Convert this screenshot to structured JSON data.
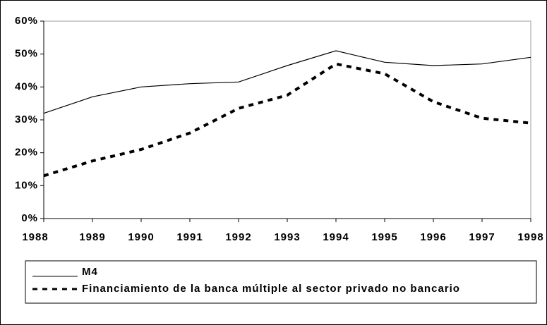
{
  "chart_data": {
    "type": "line",
    "categories": [
      "1988",
      "1989",
      "1990",
      "1991",
      "1992",
      "1993",
      "1994",
      "1995",
      "1996",
      "1997",
      "1998"
    ],
    "series": [
      {
        "name": "M4",
        "color": "#000000",
        "dash": "solid",
        "values": [
          32,
          37,
          40,
          41,
          41.5,
          46.5,
          51,
          47.5,
          46.5,
          47,
          49
        ]
      },
      {
        "name": "Financiamiento de la banca múltiple al sector privado no bancario",
        "color": "#000000",
        "dash": "dashed",
        "values": [
          13,
          17.5,
          21,
          26,
          33.5,
          37.5,
          47,
          44,
          35.5,
          30.5,
          29
        ]
      }
    ],
    "ylim": [
      0,
      60
    ],
    "yticks": [
      {
        "value": 0,
        "label": "0%"
      },
      {
        "value": 10,
        "label": "10%"
      },
      {
        "value": 20,
        "label": "20%"
      },
      {
        "value": 30,
        "label": "30%"
      },
      {
        "value": 40,
        "label": "40%"
      },
      {
        "value": 50,
        "label": "50%"
      },
      {
        "value": 60,
        "label": "60%"
      }
    ],
    "legend": "bottom"
  }
}
